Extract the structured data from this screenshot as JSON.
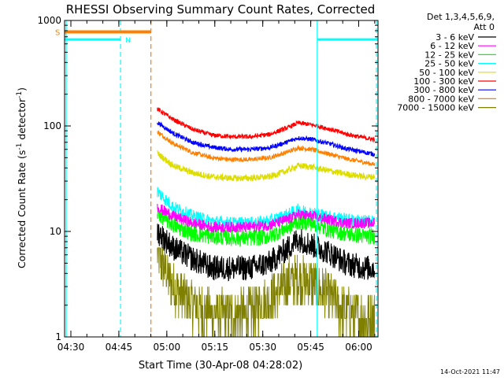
{
  "chart_data": {
    "type": "line",
    "title": "RHESSI Observing Summary Count Rates, Corrected",
    "xlabel": "Start Time (30-Apr-08 04:28:02)",
    "ylabel_main": "Corrected Count Rate (s",
    "ylabel_sup1": "-1",
    "ylabel_mid": " detector",
    "ylabel_sup2": "-1",
    "ylabel_end": ")",
    "yscale": "log",
    "ylim": [
      1,
      1000
    ],
    "xlim_minutes": [
      0,
      98
    ],
    "yticks": [
      {
        "value": 1,
        "label": "1"
      },
      {
        "value": 10,
        "label": "10"
      },
      {
        "value": 100,
        "label": "100"
      },
      {
        "value": 1000,
        "label": "1000"
      }
    ],
    "xticks": [
      {
        "minute": 1.97,
        "label": "04:30"
      },
      {
        "minute": 16.97,
        "label": "04:45"
      },
      {
        "minute": 31.97,
        "label": "05:00"
      },
      {
        "minute": 46.97,
        "label": "05:15"
      },
      {
        "minute": 61.97,
        "label": "05:30"
      },
      {
        "minute": 76.97,
        "label": "05:45"
      },
      {
        "minute": 91.97,
        "label": "06:00"
      }
    ],
    "legend": {
      "position": "right",
      "header_line1": "Det 1,3,4,5,6,9,",
      "header_line2": "Att 0"
    },
    "series": [
      {
        "name": "3 - 6 keV",
        "color": "#000000",
        "minutes": [
          29,
          34,
          40,
          46,
          52,
          58,
          64,
          70,
          73,
          77,
          82,
          88,
          94,
          97
        ],
        "values": [
          10,
          7,
          5.5,
          4.5,
          4.5,
          4.5,
          5,
          7,
          8.5,
          7.5,
          6.5,
          5,
          4.5,
          4.5
        ],
        "noise": 0.28
      },
      {
        "name": "6 - 12 keV",
        "color": "#ff00ff",
        "minutes": [
          29,
          34,
          40,
          46,
          52,
          58,
          64,
          70,
          73,
          77,
          82,
          88,
          94,
          97
        ],
        "values": [
          17,
          14,
          12,
          11,
          11,
          11,
          11.5,
          13,
          14.5,
          14,
          13,
          12,
          12,
          12
        ],
        "noise": 0.12
      },
      {
        "name": "12 - 25 keV",
        "color": "#00ff00",
        "minutes": [
          29,
          34,
          40,
          46,
          52,
          58,
          64,
          70,
          73,
          77,
          82,
          88,
          94,
          97
        ],
        "values": [
          15,
          11.5,
          9.5,
          9,
          8.7,
          8.6,
          9,
          11,
          12.5,
          12,
          10.5,
          9.5,
          9,
          9
        ],
        "noise": 0.18
      },
      {
        "name": "25 - 50 keV",
        "color": "#00ffff",
        "minutes": [
          29,
          34,
          40,
          46,
          52,
          58,
          64,
          70,
          73,
          77,
          82,
          88,
          94,
          97
        ],
        "values": [
          24,
          17,
          14,
          12.5,
          12,
          12,
          12.5,
          14.5,
          16,
          15,
          14,
          13,
          12.5,
          12.5
        ],
        "noise": 0.14
      },
      {
        "name": "50 - 100 keV",
        "color": "#dddd00",
        "minutes": [
          29,
          34,
          40,
          46,
          52,
          58,
          64,
          70,
          73,
          77,
          82,
          88,
          94,
          97
        ],
        "values": [
          55,
          42,
          36,
          33,
          32,
          32,
          33,
          38,
          42,
          41,
          38,
          35,
          33,
          33
        ],
        "noise": 0.07
      },
      {
        "name": "100 - 300 keV",
        "color": "#ff0000",
        "minutes": [
          29,
          34,
          40,
          46,
          52,
          58,
          64,
          70,
          73,
          77,
          82,
          88,
          94,
          97
        ],
        "values": [
          145,
          115,
          93,
          82,
          79,
          79,
          83,
          97,
          107,
          103,
          95,
          84,
          77,
          74
        ],
        "noise": 0.05
      },
      {
        "name": "300 - 800 keV",
        "color": "#0000ff",
        "minutes": [
          29,
          34,
          40,
          46,
          52,
          58,
          64,
          70,
          73,
          77,
          82,
          88,
          94,
          97
        ],
        "values": [
          108,
          85,
          70,
          63,
          60,
          60,
          62,
          71,
          77,
          75,
          69,
          61,
          56,
          54
        ],
        "noise": 0.05
      },
      {
        "name": "800 - 7000 keV",
        "color": "#ff8000",
        "minutes": [
          29,
          34,
          40,
          46,
          52,
          58,
          64,
          70,
          73,
          77,
          82,
          88,
          94,
          97
        ],
        "values": [
          88,
          68,
          56,
          50,
          48,
          48,
          50,
          57,
          62,
          60,
          55,
          49,
          45,
          43
        ],
        "noise": 0.05
      },
      {
        "name": "7000 - 15000 keV",
        "color": "#808000",
        "minutes": [
          29,
          34,
          40,
          46,
          52,
          58,
          64,
          70,
          73,
          77,
          82,
          88,
          94,
          97
        ],
        "values": [
          6,
          3,
          2,
          1.6,
          1.6,
          1.7,
          2.2,
          3.3,
          3.5,
          3.3,
          2.5,
          1.7,
          1.5,
          1.5
        ],
        "noise": 0.55,
        "quantized": true
      }
    ],
    "flags": {
      "saa": {
        "label": "S",
        "color": "#ff8000",
        "start_minute": 0,
        "end_minute": 27,
        "level": 780
      },
      "night": {
        "label": "N",
        "color": "#00ffff",
        "segments": [
          [
            0,
            17.5
          ],
          [
            79,
            98
          ]
        ],
        "label_minute": 19,
        "level": 660
      }
    },
    "markers": [
      {
        "minute": 0.5,
        "color": "#00ffff",
        "style": "solid"
      },
      {
        "minute": 17.5,
        "color": "#00ffff",
        "style": "dashed"
      },
      {
        "minute": 27,
        "color": "#ff8000",
        "style": "dashed"
      },
      {
        "minute": 79,
        "color": "#00ffff",
        "style": "solid"
      },
      {
        "minute": 97.5,
        "color": "#00ffff",
        "style": "dashed"
      }
    ]
  },
  "footer": {
    "timestamp": "14-Oct-2021 11:47"
  }
}
